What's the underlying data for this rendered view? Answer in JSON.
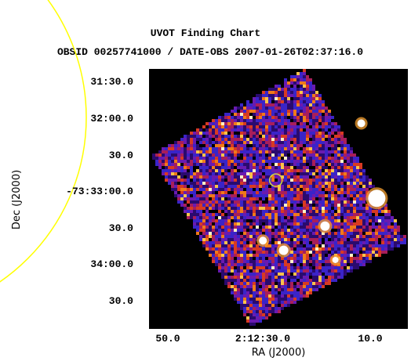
{
  "chart_data": {
    "type": "heatmap",
    "title": "UVOT Finding Chart",
    "subtitle": "OBSID 00257741000 / DATE-OBS 2007-01-26T02:37:16.0",
    "xlabel": "RA (J2000)",
    "ylabel": "Dec (J2000)",
    "x_ticks": [
      "50.0",
      "2:12:30.0",
      "10.0"
    ],
    "y_ticks": [
      "31:30.0",
      "32:00.0",
      "30.0",
      "-73:33:00.0",
      "30.0",
      "34:00.0",
      "30.0"
    ],
    "xlim": [
      "2:12:55",
      "2:12:05"
    ],
    "ylim": [
      "-73:34:55",
      "-73:31:20"
    ],
    "colormap": "heat (black-blue-red-yellow-white)",
    "overlays": [
      {
        "shape": "circle",
        "color": "#d8d840",
        "label": "target position",
        "ra": "2:12:30.5",
        "dec": "-73:32:52"
      },
      {
        "shape": "circle",
        "color": "#ffff00",
        "label": "large error circle (partially visible)"
      }
    ],
    "bright_sources": [
      {
        "ra": "2:12:11",
        "dec": "-73:33:07",
        "brightness": "very bright"
      },
      {
        "ra": "2:12:21",
        "dec": "-73:33:30",
        "brightness": "bright"
      },
      {
        "ra": "2:12:29",
        "dec": "-73:33:50",
        "brightness": "bright"
      },
      {
        "ra": "2:12:33",
        "dec": "-73:33:42",
        "brightness": "medium"
      },
      {
        "ra": "2:12:14",
        "dec": "-73:32:05",
        "brightness": "medium"
      },
      {
        "ra": "2:12:19",
        "dec": "-73:33:58",
        "brightness": "faint"
      }
    ]
  }
}
